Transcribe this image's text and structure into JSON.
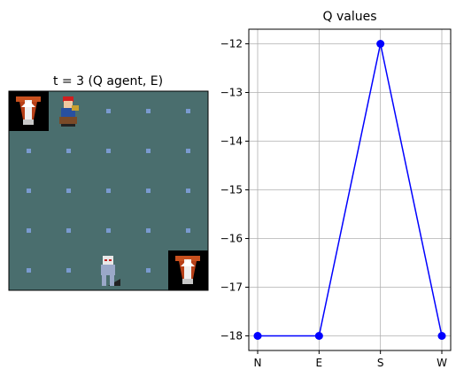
{
  "left_panel": {
    "title": "t = 3 (Q agent, E)",
    "grid": {
      "cols": 5,
      "rows": 5,
      "background": "#4a6e6e",
      "dot_color": "#7a9ad0"
    },
    "sprites": [
      {
        "name": "goal-top-left",
        "icon": "totem-icon",
        "col": 0,
        "row": 0
      },
      {
        "name": "goal-bottom-right",
        "icon": "totem-icon",
        "col": 4,
        "row": 4
      },
      {
        "name": "agent",
        "icon": "agent-sprite-icon",
        "col": 1,
        "row": 0
      },
      {
        "name": "opponent",
        "icon": "ghost-sprite-icon",
        "col": 2,
        "row": 4
      }
    ]
  },
  "chart_data": {
    "type": "line",
    "title": "Q values",
    "categories": [
      "N",
      "E",
      "S",
      "W"
    ],
    "series": [
      {
        "values": [
          -18,
          -18,
          -12,
          -18
        ],
        "color": "#0000ff"
      }
    ],
    "ylim": [
      -18.3,
      -11.7
    ],
    "yticks": [
      -12,
      -13,
      -14,
      -15,
      -16,
      -17,
      -18
    ],
    "grid": true
  }
}
